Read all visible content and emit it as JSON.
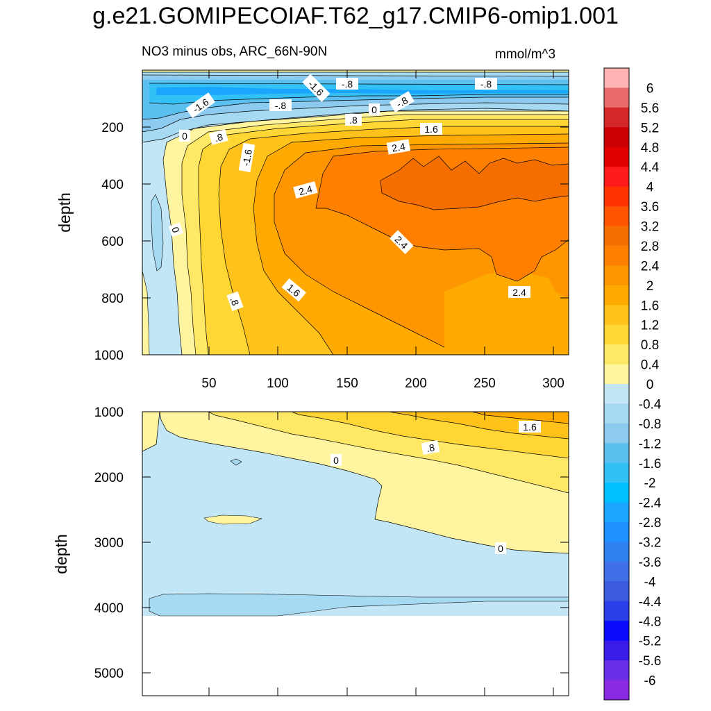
{
  "title": "g.e21.GOMIPECOIAF.T62_g17.CMIP6-omip1.001",
  "subtitle_left": "NO3 minus obs, ARC_66N-90N",
  "units": "mmol/m^3",
  "chart_data": [
    {
      "type": "contour",
      "panel": "upper",
      "ylabel": "depth",
      "xlim": [
        0,
        310
      ],
      "ylim": [
        1000,
        0
      ],
      "xticks": [
        "50",
        "100",
        "150",
        "200",
        "250",
        "300"
      ],
      "yticks": [
        "200",
        "400",
        "600",
        "800",
        "1000"
      ],
      "contour_labels": [
        "-.8",
        "-1.6",
        "-.8",
        "-1.6",
        "-.8",
        "0",
        "-.8",
        "-.8",
        ".8",
        "0",
        ".8",
        "1.6",
        "-1.6",
        "2.4",
        "2.4",
        "0",
        "2.4",
        "1.6",
        ".8",
        "2.4"
      ]
    },
    {
      "type": "contour",
      "panel": "lower",
      "ylabel": "depth",
      "xlim": [
        0,
        310
      ],
      "ylim": [
        5400,
        1000
      ],
      "yticks": [
        "1000",
        "2000",
        "3000",
        "4000",
        "5000"
      ],
      "contour_labels": [
        "1.6",
        ".8",
        "0",
        "0"
      ]
    }
  ],
  "colorbar": {
    "levels": [
      "6",
      "5.6",
      "5.2",
      "4.8",
      "4.4",
      "4",
      "3.6",
      "3.2",
      "2.8",
      "2.4",
      "2",
      "1.6",
      "1.2",
      "0.8",
      "0.4",
      "0",
      "-0.4",
      "-0.8",
      "-1.2",
      "-1.6",
      "-2",
      "-2.4",
      "-2.8",
      "-3.2",
      "-3.6",
      "-4",
      "-4.4",
      "-4.8",
      "-5.2",
      "-5.6",
      "-6"
    ],
    "colors": [
      "#FFB3B3",
      "#E86A6A",
      "#D42828",
      "#CC0000",
      "#E00000",
      "#FF1A1A",
      "#FF3300",
      "#FF5500",
      "#F56E00",
      "#FF7F00",
      "#FF9500",
      "#FFAA00",
      "#FFC21A",
      "#FFD633",
      "#FFE866",
      "#FFF5A0",
      "#C2E6F5",
      "#A6D9F2",
      "#8CCBEF",
      "#5BC0F0",
      "#33C0F5",
      "#00BFFF",
      "#1AA6FF",
      "#1E90FF",
      "#3080F0",
      "#4070E8",
      "#3A5AE0",
      "#2A3FE8",
      "#0A0AFF",
      "#3A1CE8",
      "#6A2EE8",
      "#8A2BE2"
    ]
  }
}
